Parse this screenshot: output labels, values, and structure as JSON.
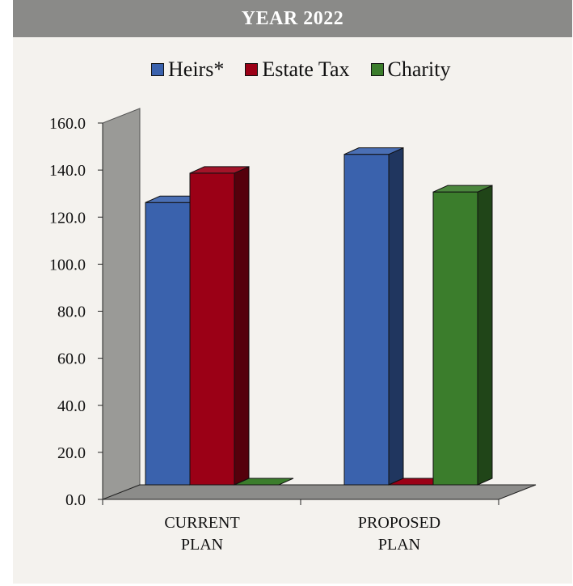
{
  "title": "YEAR 2022",
  "colors": {
    "heirs": "#3a62ad",
    "estate_tax": "#9b0016",
    "charity": "#3b7d2c",
    "wall": "#9a9a97",
    "floor": "#8c8c8a"
  },
  "legend": [
    {
      "label": "Heirs*",
      "color": "#3a62ad"
    },
    {
      "label": "Estate Tax",
      "color": "#9b0016"
    },
    {
      "label": "Charity",
      "color": "#3b7d2c"
    }
  ],
  "chart_data": {
    "type": "bar",
    "categories": [
      [
        "CURRENT",
        "PLAN"
      ],
      [
        "PROPOSED",
        "PLAN"
      ]
    ],
    "series": [
      {
        "name": "Heirs*",
        "color": "#3a62ad",
        "values": [
          120.0,
          140.5
        ]
      },
      {
        "name": "Estate Tax",
        "color": "#9b0016",
        "values": [
          132.5,
          0.0
        ]
      },
      {
        "name": "Charity",
        "color": "#3b7d2c",
        "values": [
          0.0,
          124.5
        ]
      }
    ],
    "ylim": [
      0,
      160
    ],
    "yticks": [
      "0.0",
      "20.0",
      "40.0",
      "60.0",
      "80.0",
      "100.0",
      "120.0",
      "140.0",
      "160.0"
    ],
    "title": "YEAR 2022",
    "xlabel": "",
    "ylabel": "",
    "legend_position": "top"
  }
}
